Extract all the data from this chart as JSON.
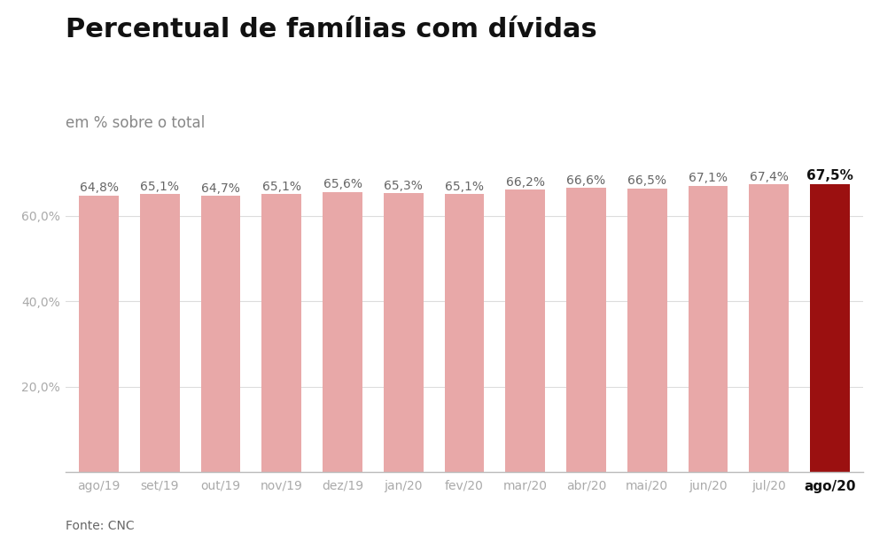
{
  "title": "Percentual de famílias com dívidas",
  "subtitle": "em % sobre o total",
  "source": "Fonte: CNC",
  "categories": [
    "ago/19",
    "set/19",
    "out/19",
    "nov/19",
    "dez/19",
    "jan/20",
    "fev/20",
    "mar/20",
    "abr/20",
    "mai/20",
    "jun/20",
    "jul/20",
    "ago/20"
  ],
  "values": [
    64.8,
    65.1,
    64.7,
    65.1,
    65.6,
    65.3,
    65.1,
    66.2,
    66.6,
    66.5,
    67.1,
    67.4,
    67.5
  ],
  "labels": [
    "64,8%",
    "65,1%",
    "64,7%",
    "65,1%",
    "65,6%",
    "65,3%",
    "65,1%",
    "66,2%",
    "66,6%",
    "66,5%",
    "67,1%",
    "67,4%",
    "67,5%"
  ],
  "bar_colors": [
    "#e8a8a8",
    "#e8a8a8",
    "#e8a8a8",
    "#e8a8a8",
    "#e8a8a8",
    "#e8a8a8",
    "#e8a8a8",
    "#e8a8a8",
    "#e8a8a8",
    "#e8a8a8",
    "#e8a8a8",
    "#e8a8a8",
    "#9b1010"
  ],
  "highlight_index": 12,
  "yticks": [
    20.0,
    40.0,
    60.0
  ],
  "ytick_labels": [
    "20,0%",
    "40,0%",
    "60,0%"
  ],
  "ylim": [
    0,
    72
  ],
  "background_color": "#ffffff",
  "title_fontsize": 22,
  "subtitle_fontsize": 12,
  "label_fontsize": 10,
  "axis_fontsize": 10,
  "source_fontsize": 10,
  "title_color": "#111111",
  "subtitle_color": "#888888",
  "label_color_normal": "#666666",
  "label_color_highlight": "#111111",
  "axis_color": "#aaaaaa",
  "source_color": "#666666",
  "grid_color": "#dddddd",
  "bar_width": 0.65
}
